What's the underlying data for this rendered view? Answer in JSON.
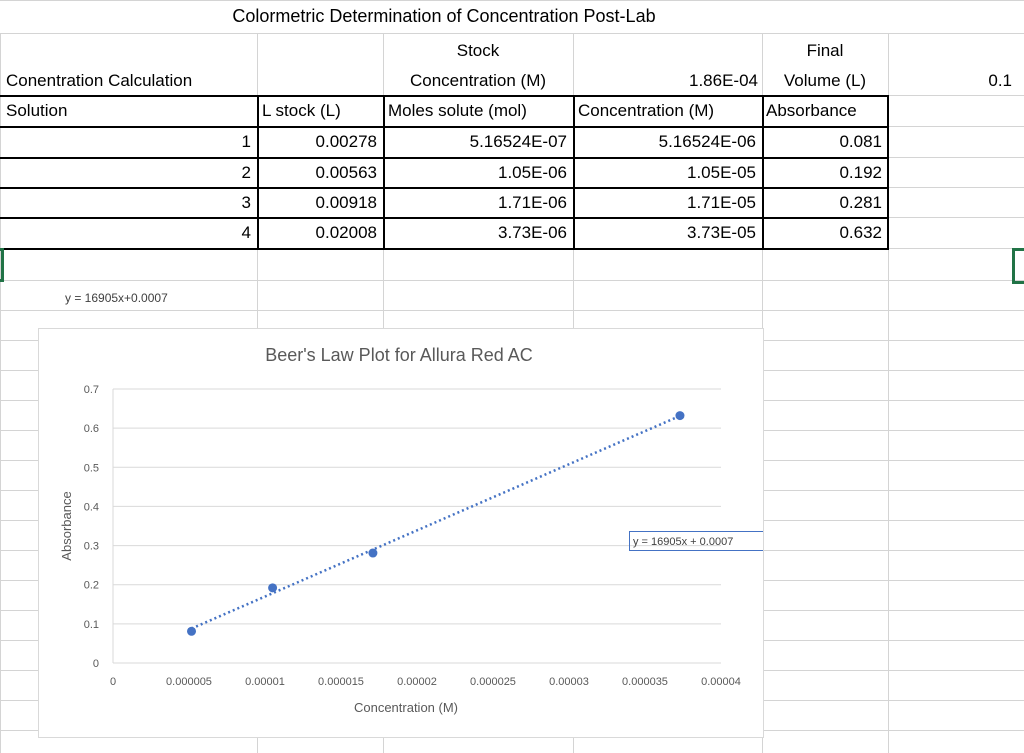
{
  "sheet": {
    "title": "Colormetric Determination of Concentration Post-Lab",
    "header": {
      "calc_label": "Conentration Calculation",
      "stock_line1": "Stock",
      "stock_line2": "Concentration (M)",
      "stock_value": "1.86E-04",
      "final_line1": "Final",
      "final_line2": "Volume (L)",
      "final_value": "0.1"
    },
    "columns": [
      "Solution",
      "L stock (L)",
      "Moles solute (mol)",
      "Concentration (M)",
      "Absorbance"
    ],
    "rows": [
      [
        "1",
        "0.00278",
        "5.16524E-07",
        "5.16524E-06",
        "0.081"
      ],
      [
        "2",
        "0.00563",
        "1.05E-06",
        "1.05E-05",
        "0.192"
      ],
      [
        "3",
        "0.00918",
        "1.71E-06",
        "1.71E-05",
        "0.281"
      ],
      [
        "4",
        "0.02008",
        "3.73E-06",
        "3.73E-05",
        "0.632"
      ]
    ],
    "equation_cell": "y = 16905x+0.0007",
    "selection_color": "#217346"
  },
  "chart_data": {
    "type": "scatter",
    "title": "Beer's Law Plot for Allura Red AC",
    "xlabel": "Concentration (M)",
    "ylabel": "Absorbance",
    "xlim": [
      0,
      4e-05
    ],
    "ylim": [
      0,
      0.7
    ],
    "x_ticks": [
      "0",
      "0.000005",
      "0.00001",
      "0.000015",
      "0.00002",
      "0.000025",
      "0.00003",
      "0.000035",
      "0.00004"
    ],
    "y_ticks": [
      "0",
      "0.1",
      "0.2",
      "0.3",
      "0.4",
      "0.5",
      "0.6",
      "0.7"
    ],
    "x": [
      5.16524e-06,
      1.05e-05,
      1.71e-05,
      3.73e-05
    ],
    "y": [
      0.081,
      0.192,
      0.281,
      0.632
    ],
    "trendline": {
      "type": "linear",
      "slope": 16905,
      "intercept": 0.0007,
      "label": "y = 16905x + 0.0007",
      "style": "dotted"
    },
    "grid": true,
    "legend": "none",
    "color": "#4472c4"
  }
}
